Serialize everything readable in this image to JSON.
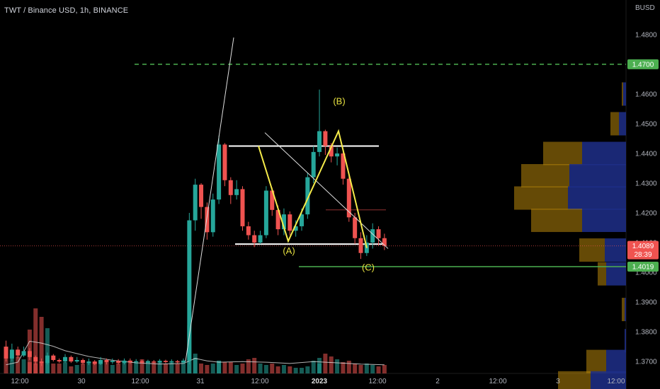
{
  "header": {
    "symbol_title": "TWT / Binance USD, 1h, BINANCE",
    "currency": "BUSD"
  },
  "colors": {
    "up": "#26a69a",
    "down": "#ef5350",
    "target": "#4caf50",
    "wave": "#f5eb4a",
    "vp_up": "#1e2f8a",
    "vp_down": "#b8860b"
  },
  "chart_data": {
    "type": "candlestick",
    "interval": "1h",
    "ylim": [
      1.3655,
      1.4895
    ],
    "y_ticks": [
      "1.4800",
      "1.4700",
      "1.4600",
      "1.4500",
      "1.4400",
      "1.4300",
      "1.4200",
      "1.4100",
      "1.4000",
      "1.3900",
      "1.3800",
      "1.3700"
    ],
    "y_tick_values": [
      1.48,
      1.47,
      1.46,
      1.45,
      1.44,
      1.43,
      1.42,
      1.41,
      1.4,
      1.39,
      1.38,
      1.37
    ],
    "x_ticks": [
      "12:00",
      "30",
      "12:00",
      "31",
      "12:00",
      "2023",
      "12:00",
      "2",
      "12:00",
      "3",
      "12:00"
    ],
    "x_bold_tick": "2023",
    "price_labels": {
      "target": "1.4700",
      "current": "1.4089",
      "countdown": "28:39",
      "support": "1.4019"
    },
    "levels": {
      "target": 1.47,
      "upper_range": 1.4425,
      "lower_range": 1.4095,
      "support": 1.4019,
      "current": 1.4089
    },
    "wave_labels": [
      "(A)",
      "(B)",
      "(C)"
    ],
    "wave_points": [
      {
        "label": "start",
        "value": 1.4425
      },
      {
        "label": "(A)",
        "value": 1.4105
      },
      {
        "label": "(B)",
        "value": 1.4475
      },
      {
        "label": "(C)",
        "value": 1.4082
      }
    ],
    "candles": [
      [
        1.375,
        1.371,
        1.377,
        1.37
      ],
      [
        1.371,
        1.374,
        1.376,
        1.37
      ],
      [
        1.374,
        1.372,
        1.375,
        1.371
      ],
      [
        1.372,
        1.3735,
        1.375,
        1.3715
      ],
      [
        1.3735,
        1.3715,
        1.3745,
        1.3705
      ],
      [
        1.3715,
        1.37,
        1.372,
        1.369
      ],
      [
        1.37,
        1.3695,
        1.371,
        1.3685
      ],
      [
        1.3695,
        1.372,
        1.373,
        1.369
      ],
      [
        1.372,
        1.3705,
        1.3725,
        1.37
      ],
      [
        1.3705,
        1.37,
        1.371,
        1.3695
      ],
      [
        1.37,
        1.3715,
        1.3725,
        1.3695
      ],
      [
        1.3715,
        1.37,
        1.372,
        1.3695
      ],
      [
        1.37,
        1.3705,
        1.3715,
        1.3695
      ],
      [
        1.3705,
        1.3695,
        1.371,
        1.369
      ],
      [
        1.3695,
        1.37,
        1.371,
        1.3688
      ],
      [
        1.37,
        1.3692,
        1.3705,
        1.3688
      ],
      [
        1.3692,
        1.3705,
        1.3715,
        1.3688
      ],
      [
        1.3705,
        1.3698,
        1.371,
        1.369
      ],
      [
        1.3698,
        1.3702,
        1.371,
        1.3692
      ],
      [
        1.3702,
        1.3695,
        1.3708,
        1.369
      ],
      [
        1.3695,
        1.3703,
        1.371,
        1.369
      ],
      [
        1.3703,
        1.3698,
        1.371,
        1.3692
      ],
      [
        1.3698,
        1.3701,
        1.3708,
        1.3692
      ],
      [
        1.3701,
        1.3696,
        1.3706,
        1.3692
      ],
      [
        1.3696,
        1.37,
        1.3706,
        1.3692
      ],
      [
        1.37,
        1.3697,
        1.3705,
        1.3693
      ],
      [
        1.3697,
        1.3702,
        1.3708,
        1.3693
      ],
      [
        1.3702,
        1.3698,
        1.3706,
        1.3694
      ],
      [
        1.3698,
        1.3701,
        1.3707,
        1.3693
      ],
      [
        1.3701,
        1.3697,
        1.3705,
        1.3693
      ],
      [
        1.3697,
        1.3703,
        1.371,
        1.3693
      ],
      [
        1.3703,
        1.4175,
        1.42,
        1.369
      ],
      [
        1.4175,
        1.4295,
        1.4315,
        1.414
      ],
      [
        1.4295,
        1.422,
        1.43,
        1.418
      ],
      [
        1.422,
        1.4135,
        1.4235,
        1.411
      ],
      [
        1.4135,
        1.4245,
        1.4265,
        1.412
      ],
      [
        1.4245,
        1.443,
        1.446,
        1.423
      ],
      [
        1.443,
        1.431,
        1.4435,
        1.429
      ],
      [
        1.431,
        1.426,
        1.432,
        1.423
      ],
      [
        1.426,
        1.428,
        1.431,
        1.4245
      ],
      [
        1.428,
        1.4155,
        1.429,
        1.414
      ],
      [
        1.4155,
        1.4125,
        1.417,
        1.411
      ],
      [
        1.4125,
        1.41,
        1.414,
        1.4085
      ],
      [
        1.41,
        1.4125,
        1.414,
        1.4095
      ],
      [
        1.4125,
        1.4275,
        1.429,
        1.4115
      ],
      [
        1.4275,
        1.421,
        1.4285,
        1.419
      ],
      [
        1.421,
        1.4145,
        1.4225,
        1.4125
      ],
      [
        1.4145,
        1.4195,
        1.4215,
        1.4125
      ],
      [
        1.4195,
        1.414,
        1.4205,
        1.4125
      ],
      [
        1.414,
        1.4155,
        1.4175,
        1.412
      ],
      [
        1.4155,
        1.4195,
        1.4215,
        1.414
      ],
      [
        1.4195,
        1.432,
        1.4335,
        1.418
      ],
      [
        1.432,
        1.4405,
        1.4425,
        1.43
      ],
      [
        1.4405,
        1.4475,
        1.4615,
        1.439
      ],
      [
        1.4475,
        1.4425,
        1.448,
        1.4395
      ],
      [
        1.4425,
        1.439,
        1.4435,
        1.437
      ],
      [
        1.439,
        1.44,
        1.442,
        1.436
      ],
      [
        1.44,
        1.4315,
        1.441,
        1.4295
      ],
      [
        1.4315,
        1.4185,
        1.433,
        1.417
      ],
      [
        1.4185,
        1.4115,
        1.42,
        1.4095
      ],
      [
        1.4115,
        1.4065,
        1.4135,
        1.4045
      ],
      [
        1.4065,
        1.41,
        1.4125,
        1.4055
      ],
      [
        1.41,
        1.4145,
        1.4165,
        1.408
      ],
      [
        1.4145,
        1.4115,
        1.4155,
        1.409
      ],
      [
        1.4115,
        1.4089,
        1.413,
        1.4075
      ]
    ],
    "volumes": [
      14,
      14,
      12,
      10,
      8,
      7,
      8,
      12,
      7,
      7,
      8,
      5,
      6,
      7,
      8,
      8,
      9,
      8,
      6,
      7,
      8,
      9,
      8,
      10,
      9,
      8,
      9,
      7,
      8,
      7,
      8,
      10,
      11,
      7,
      6,
      7,
      9,
      8,
      8,
      6,
      7,
      10,
      11,
      7,
      6,
      7,
      5,
      6,
      5,
      4,
      4,
      5,
      9,
      11,
      14,
      12,
      10,
      8,
      9,
      7,
      6,
      7,
      6,
      5,
      6
    ],
    "volume_overlay": [
      {
        "x": 0,
        "v": 14
      },
      {
        "x": 2,
        "v": 22
      },
      {
        "x": 4,
        "v": 88
      },
      {
        "x": 6,
        "v": 82
      },
      {
        "x": 8,
        "v": 72
      },
      {
        "x": 10,
        "v": 58
      },
      {
        "x": 14,
        "v": 40
      },
      {
        "x": 18,
        "v": 28
      },
      {
        "x": 22,
        "v": 20
      },
      {
        "x": 26,
        "v": 16
      },
      {
        "x": 30,
        "v": 18
      },
      {
        "x": 32,
        "v": 34
      },
      {
        "x": 34,
        "v": 26
      },
      {
        "x": 36,
        "v": 22
      },
      {
        "x": 40,
        "v": 24
      },
      {
        "x": 44,
        "v": 22
      },
      {
        "x": 48,
        "v": 18
      },
      {
        "x": 52,
        "v": 24
      },
      {
        "x": 56,
        "v": 20
      },
      {
        "x": 60,
        "v": 16
      },
      {
        "x": 64,
        "v": 14
      }
    ],
    "volume_profile": [
      {
        "price": 1.46,
        "up": 4,
        "down": 2
      },
      {
        "price": 1.45,
        "up": 10,
        "down": 12
      },
      {
        "price": 1.44,
        "up": 62,
        "down": 55
      },
      {
        "price": 1.4325,
        "up": 80,
        "down": 68
      },
      {
        "price": 1.425,
        "up": 82,
        "down": 76
      },
      {
        "price": 1.4175,
        "up": 62,
        "down": 72
      },
      {
        "price": 1.4075,
        "up": 30,
        "down": 36
      },
      {
        "price": 1.3995,
        "up": 28,
        "down": 12
      },
      {
        "price": 1.3875,
        "up": 2,
        "down": 4
      },
      {
        "price": 1.377,
        "up": 2,
        "down": 0
      },
      {
        "price": 1.37,
        "up": 28,
        "down": 28
      },
      {
        "price": 1.3628,
        "up": 50,
        "down": 46
      }
    ]
  }
}
